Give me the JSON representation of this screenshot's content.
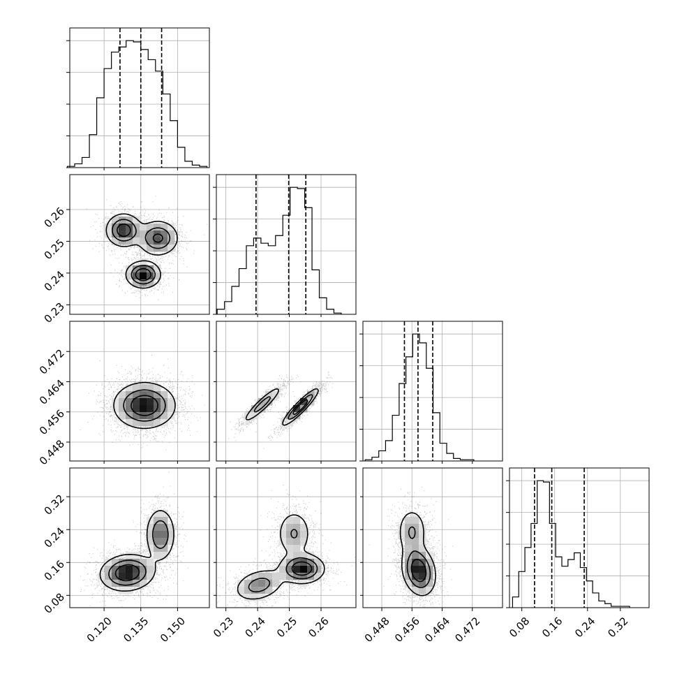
{
  "chart_data": {
    "type": "corner",
    "parameters": [
      {
        "range": [
          0.106,
          0.163
        ],
        "ticks": [
          0.12,
          0.135,
          0.15
        ],
        "tick_labels": [
          "0.120",
          "0.135",
          "0.150"
        ],
        "quantiles": [
          0.1265,
          0.135,
          0.1435
        ],
        "hist": {
          "bins": [
            0.1065,
            0.1095,
            0.1125,
            0.1155,
            0.1185,
            0.1215,
            0.1245,
            0.1275,
            0.1305,
            0.1335,
            0.1365,
            0.1395,
            0.1425,
            0.1455,
            0.1485,
            0.1515,
            0.1545,
            0.1575,
            0.1605
          ],
          "counts": [
            1,
            3,
            8,
            26,
            55,
            78,
            91,
            95,
            100,
            99,
            93,
            85,
            76,
            58,
            37,
            16,
            5,
            2,
            1
          ]
        }
      },
      {
        "range": [
          0.227,
          0.271
        ],
        "ticks": [
          0.23,
          0.24,
          0.25,
          0.26
        ],
        "tick_labels": [
          "0.23",
          "0.24",
          "0.25",
          "0.26"
        ],
        "quantiles": [
          0.2395,
          0.2498,
          0.2552
        ],
        "hist": {
          "bins": [
            0.2284,
            0.2307,
            0.233,
            0.2353,
            0.2376,
            0.2399,
            0.2422,
            0.2445,
            0.2468,
            0.2491,
            0.2514,
            0.2537,
            0.256,
            0.2583,
            0.2606,
            0.2629,
            0.2652
          ],
          "counts": [
            4,
            10,
            22,
            36,
            54,
            60,
            56,
            54,
            62,
            78,
            100,
            99,
            84,
            35,
            13,
            4,
            1
          ]
        }
      },
      {
        "range": [
          0.443,
          0.48
        ],
        "ticks": [
          0.448,
          0.456,
          0.464,
          0.472
        ],
        "tick_labels": [
          "0.448",
          "0.456",
          "0.464",
          "0.472"
        ],
        "quantiles": [
          0.454,
          0.4576,
          0.4615
        ],
        "hist": {
          "bins": [
            0.4445,
            0.4463,
            0.4481,
            0.4499,
            0.4517,
            0.4535,
            0.4553,
            0.4571,
            0.4589,
            0.4607,
            0.4625,
            0.4643,
            0.4661,
            0.4679,
            0.4697,
            0.4715
          ],
          "counts": [
            1,
            3,
            8,
            16,
            36,
            61,
            82,
            100,
            93,
            73,
            38,
            14,
            6,
            2,
            1,
            1
          ]
        }
      },
      {
        "range": [
          0.05,
          0.39
        ],
        "ticks": [
          0.08,
          0.16,
          0.24,
          0.32
        ],
        "tick_labels": [
          "0.08",
          "0.16",
          "0.24",
          "0.32"
        ],
        "quantiles": [
          0.111,
          0.153,
          0.232
        ],
        "hist": {
          "bins": [
            0.065,
            0.08,
            0.095,
            0.11,
            0.125,
            0.14,
            0.155,
            0.17,
            0.185,
            0.2,
            0.215,
            0.23,
            0.245,
            0.26,
            0.275,
            0.29,
            0.305,
            0.32,
            0.335
          ],
          "counts": [
            8,
            27,
            45,
            63,
            95,
            94,
            63,
            38,
            31,
            36,
            41,
            30,
            20,
            11,
            5,
            3,
            1,
            1,
            1
          ]
        }
      }
    ],
    "pairs": [
      {
        "row": 1,
        "col": 0,
        "modes": [
          {
            "mx": 0.128,
            "my": 0.2535,
            "sx": 0.0036,
            "sy": 0.0026,
            "rho": 0.0,
            "w": 0.34
          },
          {
            "mx": 0.142,
            "my": 0.251,
            "sx": 0.0042,
            "sy": 0.0028,
            "rho": 0.0,
            "w": 0.36
          },
          {
            "mx": 0.136,
            "my": 0.2395,
            "sx": 0.0035,
            "sy": 0.0021,
            "rho": 0.0,
            "w": 0.3
          }
        ]
      },
      {
        "row": 2,
        "col": 0,
        "modes": [
          {
            "mx": 0.1365,
            "my": 0.4577,
            "sx": 0.0062,
            "sy": 0.003,
            "rho": 0.0,
            "w": 1.0
          }
        ]
      },
      {
        "row": 2,
        "col": 1,
        "modes": [
          {
            "mx": 0.2415,
            "my": 0.458,
            "sx": 0.003,
            "sy": 0.0024,
            "rho": 0.92,
            "w": 0.38
          },
          {
            "mx": 0.2535,
            "my": 0.4573,
            "sx": 0.0028,
            "sy": 0.0024,
            "rho": 0.92,
            "w": 0.62
          }
        ]
      },
      {
        "row": 3,
        "col": 0,
        "modes": [
          {
            "mx": 0.1295,
            "my": 0.135,
            "sx": 0.0055,
            "sy": 0.022,
            "rho": 0.1,
            "w": 0.65
          },
          {
            "mx": 0.143,
            "my": 0.228,
            "sx": 0.003,
            "sy": 0.032,
            "rho": 0.0,
            "w": 0.35
          }
        ]
      },
      {
        "row": 3,
        "col": 1,
        "modes": [
          {
            "mx": 0.2405,
            "my": 0.105,
            "sx": 0.004,
            "sy": 0.02,
            "rho": 0.3,
            "w": 0.3
          },
          {
            "mx": 0.254,
            "my": 0.145,
            "sx": 0.0035,
            "sy": 0.018,
            "rho": 0.0,
            "w": 0.45
          },
          {
            "mx": 0.2515,
            "my": 0.23,
            "sx": 0.0028,
            "sy": 0.03,
            "rho": 0.0,
            "w": 0.25
          }
        ]
      },
      {
        "row": 3,
        "col": 2,
        "modes": [
          {
            "mx": 0.4578,
            "my": 0.14,
            "sx": 0.0022,
            "sy": 0.03,
            "rho": -0.2,
            "w": 0.72
          },
          {
            "mx": 0.456,
            "my": 0.235,
            "sx": 0.002,
            "sy": 0.03,
            "rho": 0.0,
            "w": 0.28
          }
        ]
      }
    ],
    "grid": true,
    "title": "",
    "axis_labels": []
  }
}
